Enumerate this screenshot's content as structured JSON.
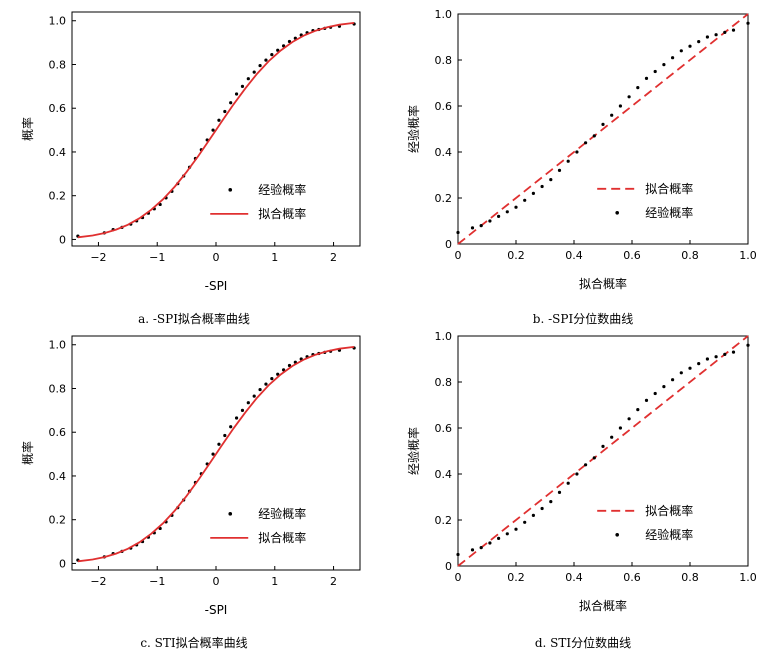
{
  "captions": {
    "a": "a. -SPI拟合概率曲线",
    "b": "b. -SPI分位数曲线",
    "c": "c. STI拟合概率曲线",
    "d": "d. STI分位数曲线"
  },
  "colors": {
    "fit": "#e03030",
    "empirical": "#000000",
    "axis": "#000000"
  },
  "chart_data": [
    {
      "id": "a",
      "type": "line",
      "xlabel": "-SPI",
      "ylabel": "概率",
      "xlim": [
        -2.45,
        2.45
      ],
      "ylim": [
        -0.03,
        1.04
      ],
      "xticks": [
        -2,
        -1,
        0,
        1,
        2
      ],
      "xtick_labels": [
        "−2",
        "−1",
        "0",
        "1",
        "2"
      ],
      "yticks": [
        0,
        0.2,
        0.4,
        0.6,
        0.8,
        1.0
      ],
      "ytick_labels": [
        "0",
        "0.2",
        "0.4",
        "0.6",
        "0.8",
        "1.0"
      ],
      "legend": [
        "经验概率",
        "拟合概率"
      ],
      "legend_position": "lower-right",
      "series": [
        {
          "name": "经验概率",
          "kind": "scatter",
          "x": [
            -2.35,
            -1.9,
            -1.75,
            -1.6,
            -1.45,
            -1.35,
            -1.25,
            -1.15,
            -1.05,
            -0.95,
            -0.85,
            -0.75,
            -0.65,
            -0.55,
            -0.45,
            -0.35,
            -0.25,
            -0.15,
            -0.05,
            0.05,
            0.15,
            0.25,
            0.35,
            0.45,
            0.55,
            0.65,
            0.75,
            0.85,
            0.95,
            1.05,
            1.15,
            1.25,
            1.35,
            1.45,
            1.55,
            1.65,
            1.75,
            1.85,
            1.95,
            2.1,
            2.35
          ],
          "y": [
            0.015,
            0.03,
            0.045,
            0.055,
            0.07,
            0.085,
            0.1,
            0.12,
            0.14,
            0.16,
            0.19,
            0.22,
            0.255,
            0.29,
            0.33,
            0.37,
            0.41,
            0.455,
            0.5,
            0.545,
            0.585,
            0.625,
            0.665,
            0.7,
            0.735,
            0.765,
            0.795,
            0.82,
            0.845,
            0.865,
            0.885,
            0.905,
            0.92,
            0.935,
            0.945,
            0.955,
            0.96,
            0.965,
            0.97,
            0.975,
            0.985
          ]
        },
        {
          "name": "拟合概率",
          "kind": "line",
          "x": [
            -2.35,
            -2.1,
            -1.9,
            -1.7,
            -1.5,
            -1.3,
            -1.1,
            -0.9,
            -0.7,
            -0.5,
            -0.3,
            -0.1,
            0.1,
            0.3,
            0.5,
            0.7,
            0.9,
            1.1,
            1.3,
            1.5,
            1.7,
            1.9,
            2.1,
            2.35
          ],
          "y": [
            0.01,
            0.018,
            0.029,
            0.045,
            0.067,
            0.097,
            0.136,
            0.184,
            0.242,
            0.309,
            0.382,
            0.46,
            0.54,
            0.618,
            0.691,
            0.758,
            0.816,
            0.864,
            0.903,
            0.933,
            0.955,
            0.971,
            0.982,
            0.99
          ]
        }
      ]
    },
    {
      "id": "b",
      "type": "line",
      "xlabel": "拟合概率",
      "ylabel": "经验概率",
      "xlim": [
        0,
        1
      ],
      "ylim": [
        0,
        1
      ],
      "xticks": [
        0,
        0.2,
        0.4,
        0.6,
        0.8,
        1.0
      ],
      "xtick_labels": [
        "0",
        "0.2",
        "0.4",
        "0.6",
        "0.8",
        "1.0"
      ],
      "yticks": [
        0,
        0.2,
        0.4,
        0.6,
        0.8,
        1.0
      ],
      "ytick_labels": [
        "0",
        "0.2",
        "0.4",
        "0.6",
        "0.8",
        "1.0"
      ],
      "legend": [
        "拟合概率",
        "经验概率"
      ],
      "legend_position": "lower-right",
      "series": [
        {
          "name": "拟合概率",
          "kind": "dashed-line",
          "x": [
            0,
            1
          ],
          "y": [
            0,
            1
          ]
        },
        {
          "name": "经验概率",
          "kind": "scatter",
          "x": [
            0.0,
            0.05,
            0.08,
            0.11,
            0.14,
            0.17,
            0.2,
            0.23,
            0.26,
            0.29,
            0.32,
            0.35,
            0.38,
            0.41,
            0.44,
            0.47,
            0.5,
            0.53,
            0.56,
            0.59,
            0.62,
            0.65,
            0.68,
            0.71,
            0.74,
            0.77,
            0.8,
            0.83,
            0.86,
            0.89,
            0.92,
            0.95,
            1.0
          ],
          "y": [
            0.05,
            0.07,
            0.08,
            0.1,
            0.12,
            0.14,
            0.16,
            0.19,
            0.22,
            0.25,
            0.28,
            0.32,
            0.36,
            0.4,
            0.44,
            0.47,
            0.52,
            0.56,
            0.6,
            0.64,
            0.68,
            0.72,
            0.75,
            0.78,
            0.81,
            0.84,
            0.86,
            0.88,
            0.9,
            0.91,
            0.92,
            0.93,
            0.96
          ]
        }
      ]
    },
    {
      "id": "c",
      "type": "line",
      "xlabel": "-SPI",
      "ylabel": "概率",
      "xlim": [
        -2.45,
        2.45
      ],
      "ylim": [
        -0.03,
        1.04
      ],
      "xticks": [
        -2,
        -1,
        0,
        1,
        2
      ],
      "xtick_labels": [
        "−2",
        "−1",
        "0",
        "1",
        "2"
      ],
      "yticks": [
        0,
        0.2,
        0.4,
        0.6,
        0.8,
        1.0
      ],
      "ytick_labels": [
        "0",
        "0.2",
        "0.4",
        "0.6",
        "0.8",
        "1.0"
      ],
      "legend": [
        "经验概率",
        "拟合概率"
      ],
      "legend_position": "lower-right",
      "series": [
        {
          "name": "经验概率",
          "kind": "scatter",
          "x": [
            -2.35,
            -1.9,
            -1.75,
            -1.6,
            -1.45,
            -1.35,
            -1.25,
            -1.15,
            -1.05,
            -0.95,
            -0.85,
            -0.75,
            -0.65,
            -0.55,
            -0.45,
            -0.35,
            -0.25,
            -0.15,
            -0.05,
            0.05,
            0.15,
            0.25,
            0.35,
            0.45,
            0.55,
            0.65,
            0.75,
            0.85,
            0.95,
            1.05,
            1.15,
            1.25,
            1.35,
            1.45,
            1.55,
            1.65,
            1.75,
            1.85,
            1.95,
            2.1,
            2.35
          ],
          "y": [
            0.015,
            0.03,
            0.045,
            0.055,
            0.07,
            0.085,
            0.1,
            0.12,
            0.14,
            0.16,
            0.19,
            0.22,
            0.255,
            0.29,
            0.33,
            0.37,
            0.41,
            0.455,
            0.5,
            0.545,
            0.585,
            0.625,
            0.665,
            0.7,
            0.735,
            0.765,
            0.795,
            0.82,
            0.845,
            0.865,
            0.885,
            0.905,
            0.92,
            0.935,
            0.945,
            0.955,
            0.96,
            0.965,
            0.97,
            0.975,
            0.985
          ]
        },
        {
          "name": "拟合概率",
          "kind": "line",
          "x": [
            -2.35,
            -2.1,
            -1.9,
            -1.7,
            -1.5,
            -1.3,
            -1.1,
            -0.9,
            -0.7,
            -0.5,
            -0.3,
            -0.1,
            0.1,
            0.3,
            0.5,
            0.7,
            0.9,
            1.1,
            1.3,
            1.5,
            1.7,
            1.9,
            2.1,
            2.35
          ],
          "y": [
            0.01,
            0.018,
            0.029,
            0.045,
            0.067,
            0.097,
            0.136,
            0.184,
            0.242,
            0.309,
            0.382,
            0.46,
            0.54,
            0.618,
            0.691,
            0.758,
            0.816,
            0.864,
            0.903,
            0.933,
            0.955,
            0.971,
            0.982,
            0.99
          ]
        }
      ]
    },
    {
      "id": "d",
      "type": "line",
      "xlabel": "拟合概率",
      "ylabel": "经验概率",
      "xlim": [
        0,
        1
      ],
      "ylim": [
        0,
        1
      ],
      "xticks": [
        0,
        0.2,
        0.4,
        0.6,
        0.8,
        1.0
      ],
      "xtick_labels": [
        "0",
        "0.2",
        "0.4",
        "0.6",
        "0.8",
        "1.0"
      ],
      "yticks": [
        0,
        0.2,
        0.4,
        0.6,
        0.8,
        1.0
      ],
      "ytick_labels": [
        "0",
        "0.2",
        "0.4",
        "0.6",
        "0.8",
        "1.0"
      ],
      "legend": [
        "拟合概率",
        "经验概率"
      ],
      "legend_position": "lower-right",
      "series": [
        {
          "name": "拟合概率",
          "kind": "dashed-line",
          "x": [
            0,
            1
          ],
          "y": [
            0,
            1
          ]
        },
        {
          "name": "经验概率",
          "kind": "scatter",
          "x": [
            0.0,
            0.05,
            0.08,
            0.11,
            0.14,
            0.17,
            0.2,
            0.23,
            0.26,
            0.29,
            0.32,
            0.35,
            0.38,
            0.41,
            0.44,
            0.47,
            0.5,
            0.53,
            0.56,
            0.59,
            0.62,
            0.65,
            0.68,
            0.71,
            0.74,
            0.77,
            0.8,
            0.83,
            0.86,
            0.89,
            0.92,
            0.95,
            1.0
          ],
          "y": [
            0.05,
            0.07,
            0.08,
            0.1,
            0.12,
            0.14,
            0.16,
            0.19,
            0.22,
            0.25,
            0.28,
            0.32,
            0.36,
            0.4,
            0.44,
            0.47,
            0.52,
            0.56,
            0.6,
            0.64,
            0.68,
            0.72,
            0.75,
            0.78,
            0.81,
            0.84,
            0.86,
            0.88,
            0.9,
            0.91,
            0.92,
            0.93,
            0.96
          ]
        }
      ]
    }
  ]
}
